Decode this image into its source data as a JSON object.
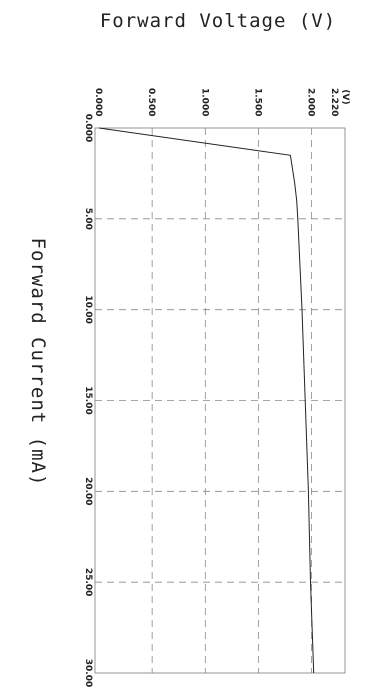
{
  "chart_data": {
    "type": "line",
    "title": "Forward Voltage (V)",
    "xlabel": "Forward Current (mA)",
    "ylabel": "",
    "unit_label": "(V)",
    "x_ticks": [
      "0.000",
      "5.00",
      "10.00",
      "15.00",
      "20.00",
      "25.00",
      "30.00"
    ],
    "y_ticks": [
      "0.000",
      "0.500",
      "1.000",
      "1.500",
      "2.000",
      "2.220"
    ],
    "xlim": [
      0,
      30
    ],
    "ylim": [
      0,
      2.22
    ],
    "grid": true,
    "series": [
      {
        "x": [
          0,
          1.5,
          3,
          4,
          5,
          10,
          15,
          20,
          25,
          30
        ],
        "y": [
          0,
          1.8,
          1.84,
          1.86,
          1.87,
          1.91,
          1.94,
          1.97,
          1.99,
          2.02
        ]
      }
    ]
  }
}
